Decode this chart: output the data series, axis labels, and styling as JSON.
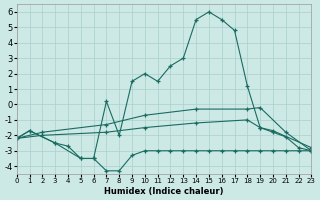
{
  "xlabel": "Humidex (Indice chaleur)",
  "bg_color": "#cce9e6",
  "grid_color": "#aad0cc",
  "line_color": "#1a6b60",
  "xlim": [
    0,
    23
  ],
  "ylim": [
    -4.5,
    6.5
  ],
  "xticks": [
    0,
    1,
    2,
    3,
    4,
    5,
    6,
    7,
    8,
    9,
    10,
    11,
    12,
    13,
    14,
    15,
    16,
    17,
    18,
    19,
    20,
    21,
    22,
    23
  ],
  "yticks": [
    -4,
    -3,
    -2,
    -1,
    0,
    1,
    2,
    3,
    4,
    5,
    6
  ],
  "curve_main": {
    "x": [
      0,
      1,
      3,
      4,
      5,
      6,
      7,
      8,
      9,
      10,
      11,
      12,
      13,
      14,
      15,
      16,
      17,
      18,
      19,
      20,
      21,
      22,
      23
    ],
    "y": [
      -2.2,
      -1.7,
      -2.5,
      -2.7,
      -3.5,
      -3.5,
      -4.3,
      -4.3,
      -3.3,
      -3.0,
      -3.0,
      -3.0,
      -3.0,
      -3.0,
      -3.0,
      -3.0,
      -3.0,
      -3.0,
      -3.0,
      -3.0,
      -3.0,
      -3.0,
      -3.0
    ]
  },
  "curve_peak": {
    "x": [
      0,
      1,
      3,
      5,
      6,
      7,
      8,
      9,
      10,
      11,
      12,
      13,
      14,
      15,
      16,
      17,
      18,
      19,
      20,
      21,
      22,
      23
    ],
    "y": [
      -2.2,
      -1.7,
      -2.5,
      -3.5,
      -3.5,
      0.2,
      -2.0,
      1.5,
      2.0,
      1.5,
      2.5,
      3.0,
      5.5,
      6.0,
      5.5,
      4.8,
      1.2,
      -1.5,
      -1.8,
      -2.1,
      -2.8,
      -3.0
    ]
  },
  "curve_upper": {
    "x": [
      0,
      2,
      7,
      10,
      14,
      18,
      19,
      21,
      23
    ],
    "y": [
      -2.2,
      -1.8,
      -1.3,
      -0.7,
      -0.3,
      -0.3,
      -0.2,
      -1.8,
      -3.0
    ]
  },
  "curve_mid": {
    "x": [
      0,
      2,
      7,
      10,
      14,
      18,
      19,
      20,
      23
    ],
    "y": [
      -2.2,
      -2.0,
      -1.8,
      -1.5,
      -1.2,
      -1.0,
      -1.5,
      -1.7,
      -2.8
    ]
  }
}
